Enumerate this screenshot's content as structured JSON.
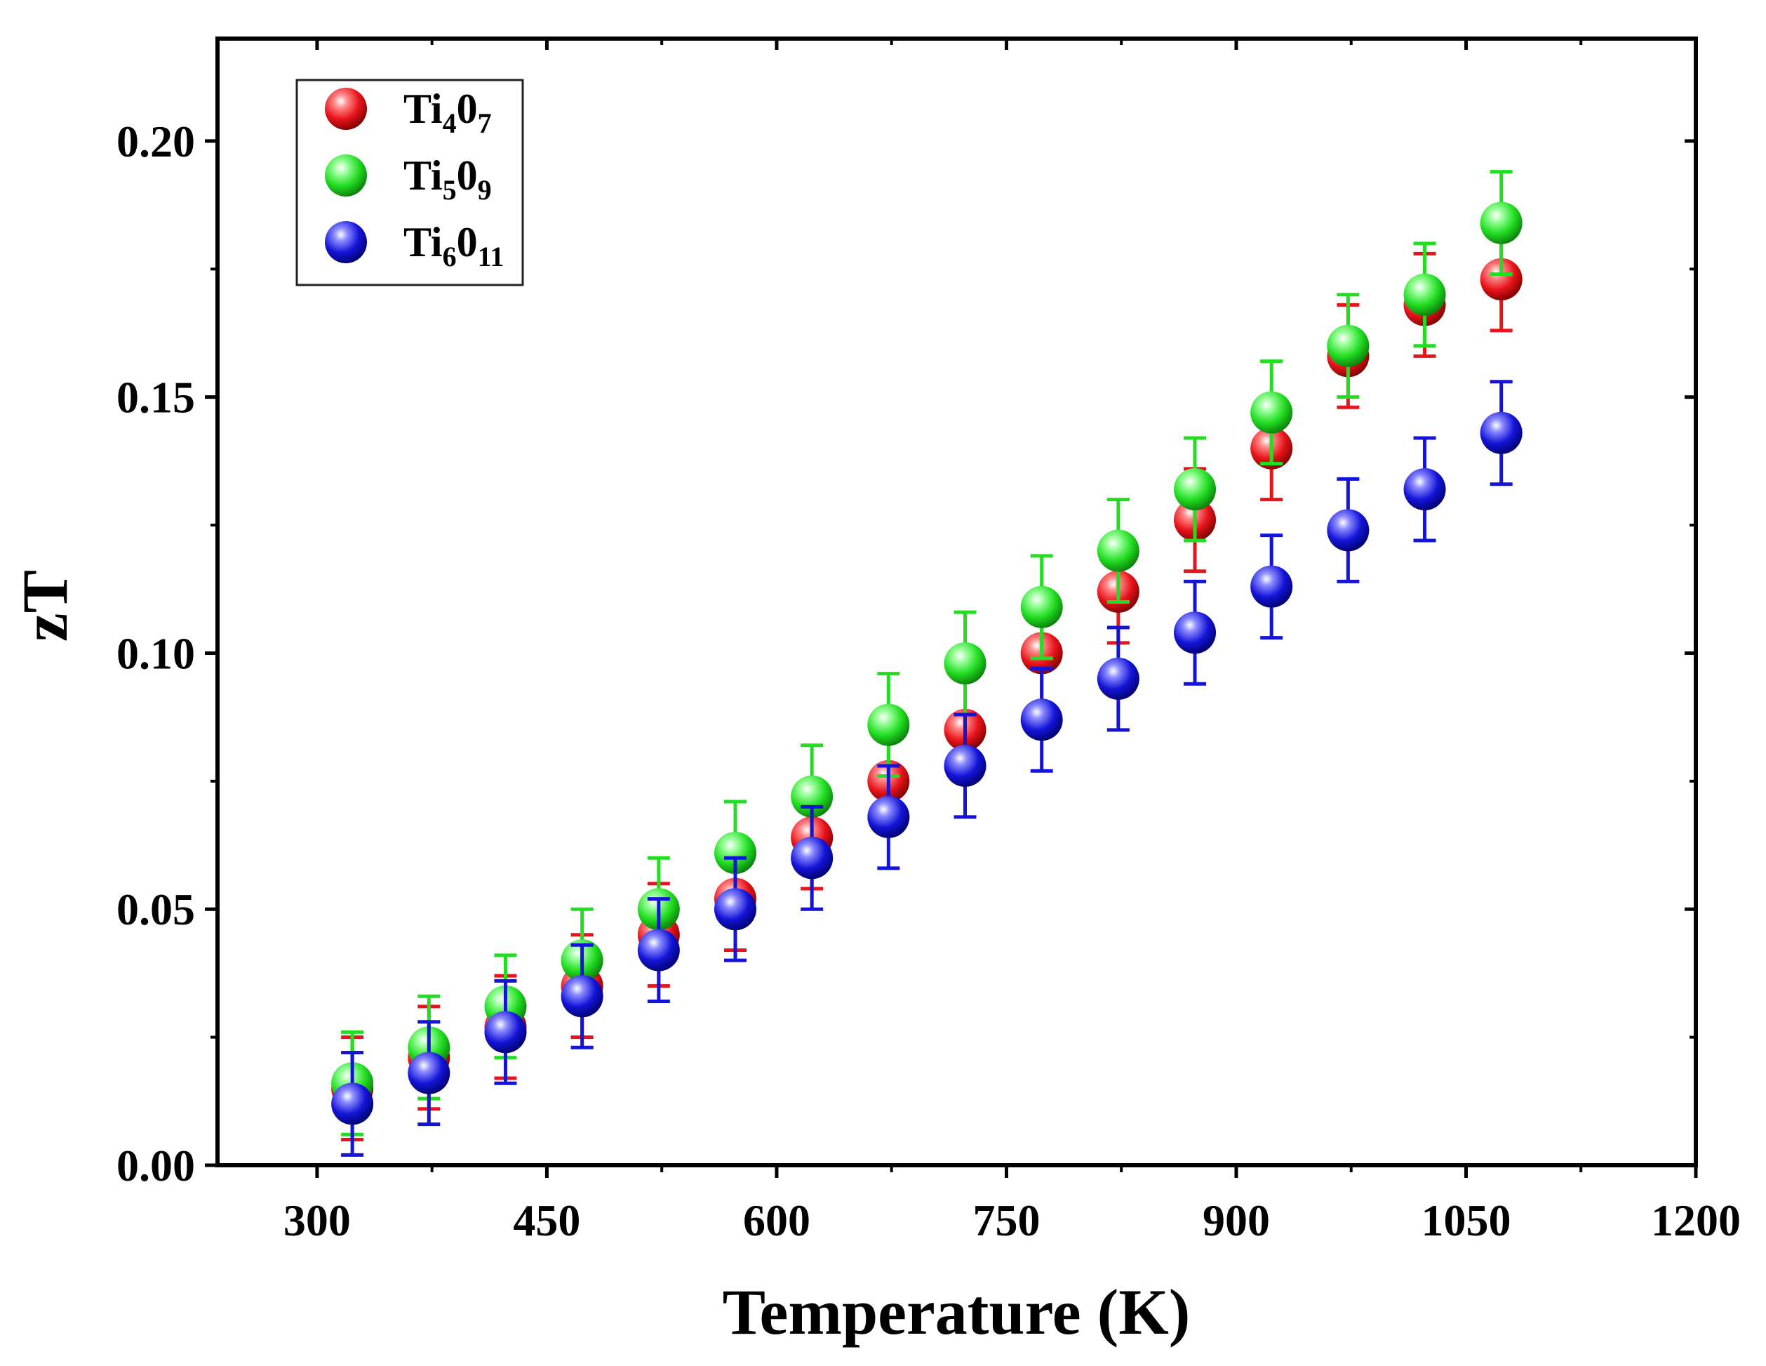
{
  "chart_data": {
    "type": "scatter",
    "title": "",
    "xlabel": "Temperature (K)",
    "ylabel": "zT",
    "xlim": [
      235,
      1200
    ],
    "ylim": [
      0,
      0.22
    ],
    "xticks": [
      300,
      450,
      600,
      750,
      900,
      1050,
      1200
    ],
    "xtick_labels": [
      "300",
      "450",
      "600",
      "750",
      "900",
      "1050",
      "1200"
    ],
    "yticks": [
      0.0,
      0.05,
      0.1,
      0.15,
      0.2
    ],
    "ytick_labels": [
      "0.00",
      "0.05",
      "0.10",
      "0.15",
      "0.20"
    ],
    "error_bar": 0.01,
    "legend_position": "top-left",
    "x": [
      323,
      373,
      423,
      473,
      523,
      573,
      623,
      673,
      723,
      773,
      823,
      873,
      923,
      973,
      1023,
      1073
    ],
    "series": [
      {
        "name": "Ti4O7",
        "label_base": "Ti",
        "sub1": "4",
        "label_mid": "0",
        "sub2": "7",
        "color": "#e8141b",
        "values": [
          0.015,
          0.021,
          0.027,
          0.035,
          0.045,
          0.052,
          0.064,
          0.075,
          0.085,
          0.1,
          0.112,
          0.126,
          0.14,
          0.158,
          0.168,
          0.173
        ]
      },
      {
        "name": "Ti5O9",
        "label_base": "Ti",
        "sub1": "5",
        "label_mid": "0",
        "sub2": "9",
        "color": "#22dd22",
        "values": [
          0.016,
          0.023,
          0.031,
          0.04,
          0.05,
          0.061,
          0.072,
          0.086,
          0.098,
          0.109,
          0.12,
          0.132,
          0.147,
          0.16,
          0.17,
          0.184
        ]
      },
      {
        "name": "Ti6O11",
        "label_base": "Ti",
        "sub1": "6",
        "label_mid": "0",
        "sub2": "11",
        "color": "#1414d8",
        "values": [
          0.012,
          0.018,
          0.026,
          0.033,
          0.042,
          0.05,
          0.06,
          0.068,
          0.078,
          0.087,
          0.095,
          0.104,
          0.113,
          0.124,
          0.132,
          0.143
        ]
      }
    ]
  }
}
